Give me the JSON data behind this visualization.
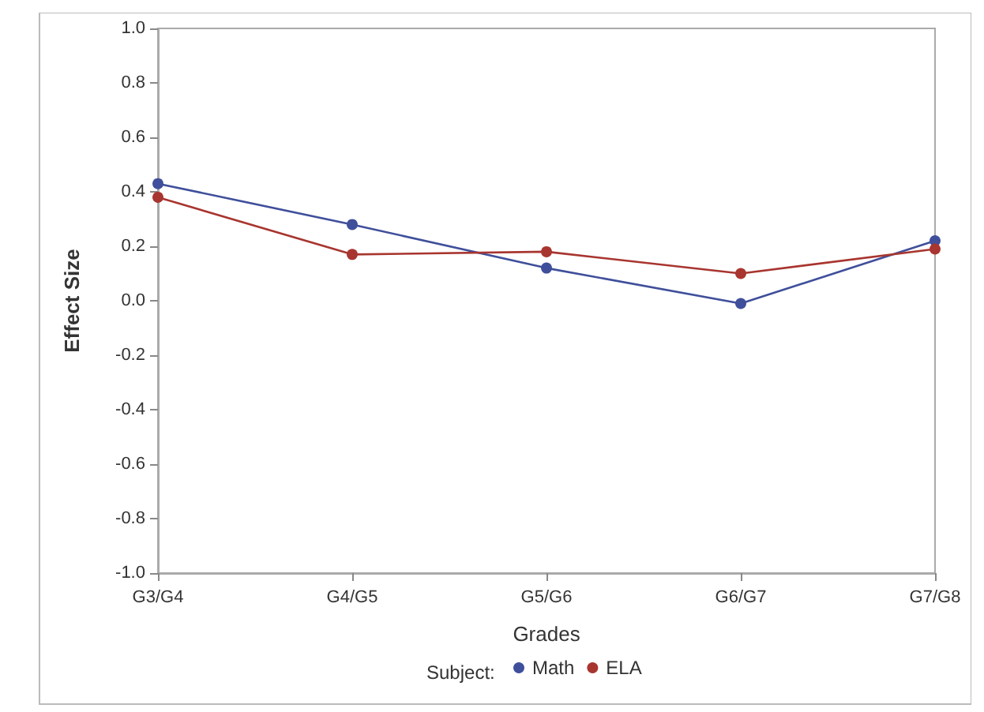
{
  "chart_data": {
    "type": "line",
    "xlabel": "Grades",
    "ylabel": "Effect Size",
    "legend_title": "Subject:",
    "categories": [
      "G3/G4",
      "G4/G5",
      "G5/G6",
      "G6/G7",
      "G7/G8"
    ],
    "series": [
      {
        "name": "Math",
        "color": "#3f4f9b",
        "values": [
          0.43,
          0.28,
          0.12,
          -0.01,
          0.22
        ]
      },
      {
        "name": "ELA",
        "color": "#a8352f",
        "values": [
          0.38,
          0.17,
          0.18,
          0.1,
          0.19
        ]
      }
    ],
    "ylim": [
      -1.0,
      1.0
    ],
    "yticks": [
      {
        "value": -1.0,
        "label": "-1.0"
      },
      {
        "value": -0.8,
        "label": "-0.8"
      },
      {
        "value": -0.6,
        "label": "-0.6"
      },
      {
        "value": -0.4,
        "label": "-0.4"
      },
      {
        "value": -0.2,
        "label": "-0.2"
      },
      {
        "value": 0,
        "label": "0.0"
      },
      {
        "value": 0.2,
        "label": "0.2"
      },
      {
        "value": 0.4,
        "label": "0.4"
      },
      {
        "value": 0.6,
        "label": "0.6"
      },
      {
        "value": 0.8,
        "label": "0.8"
      },
      {
        "value": 1.0,
        "label": "1.0"
      }
    ],
    "grid": false,
    "legend": "bottom",
    "marker": "circle",
    "line_style": "solid"
  }
}
